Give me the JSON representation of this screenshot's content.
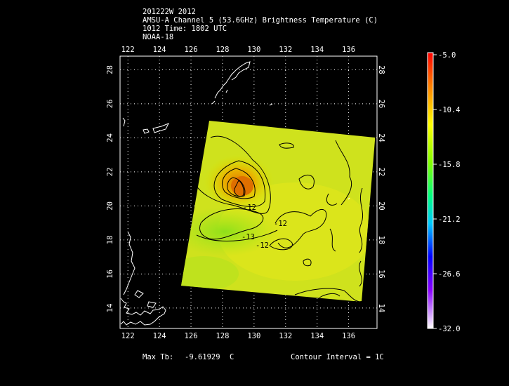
{
  "header": {
    "line1": "201222W 2012",
    "line2": "AMSU-A Channel 5 (53.6GHz) Brightness Temperature (C)",
    "line3": "1012 Time: 1802 UTC",
    "line4": "NOAA-18"
  },
  "map": {
    "lon_range": [
      121.5,
      137.8
    ],
    "lat_range": [
      12.8,
      28.8
    ],
    "lon_ticks": [
      "122",
      "124",
      "126",
      "128",
      "130",
      "132",
      "134",
      "136"
    ],
    "lat_ticks": [
      "14",
      "16",
      "18",
      "20",
      "22",
      "24",
      "26",
      "28"
    ],
    "grid": true,
    "coastline_color": "#ffffff"
  },
  "contours": {
    "labels": [
      "-12",
      "-12",
      "-13",
      "-12",
      "-13",
      "-13"
    ],
    "line_color": "#000000"
  },
  "colorbar": {
    "ticks": [
      "-5.0",
      "-10.4",
      "-15.8",
      "-21.2",
      "-26.6",
      "-32.0"
    ],
    "range": [
      -32.0,
      -5.0
    ],
    "colors": [
      "#ffffff",
      "#8800ff",
      "#0000ff",
      "#00c8ff",
      "#00ff80",
      "#80ff00",
      "#ffff00",
      "#ff8000",
      "#ff0000"
    ]
  },
  "footer": {
    "max_tb_label": "Max Tb:",
    "max_tb_value": "-9.61929",
    "max_tb_unit": "C",
    "contour_interval": "Contour Interval = 1C"
  }
}
